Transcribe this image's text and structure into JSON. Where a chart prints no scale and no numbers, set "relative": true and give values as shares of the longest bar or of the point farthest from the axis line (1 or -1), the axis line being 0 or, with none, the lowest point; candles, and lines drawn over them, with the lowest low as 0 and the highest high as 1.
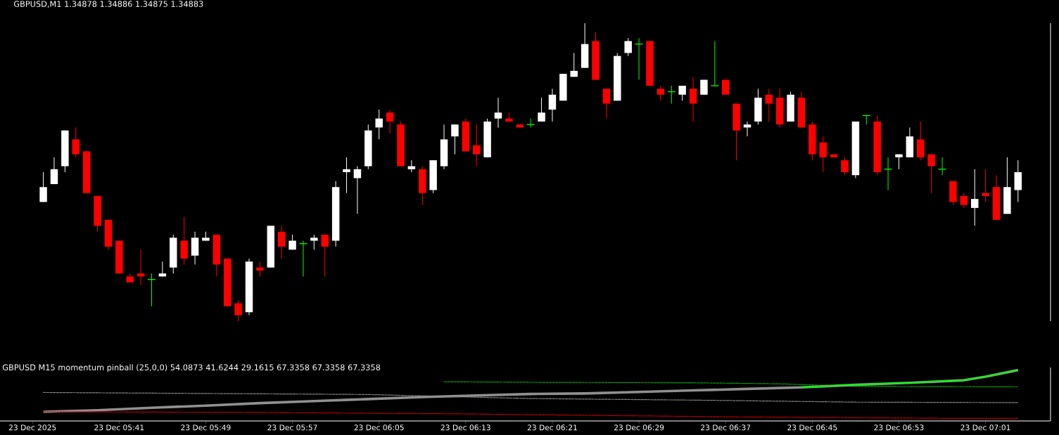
{
  "chart_data": [
    {
      "type": "candlestick",
      "title": "GBPUSD,M1  1.34878 1.34886 1.34875 1.34883",
      "relative": true,
      "tick_labels": false,
      "xlim": [
        "2025-12-23T05:30",
        "2025-12-23T07:07"
      ],
      "x": [
        "2025-12-23T05:34",
        "2025-12-23T05:35",
        "2025-12-23T05:36",
        "2025-12-23T05:37",
        "2025-12-23T05:38",
        "2025-12-23T05:39",
        "2025-12-23T05:40",
        "2025-12-23T05:41",
        "2025-12-23T05:42",
        "2025-12-23T05:43",
        "2025-12-23T05:44",
        "2025-12-23T05:45",
        "2025-12-23T05:46",
        "2025-12-23T05:47",
        "2025-12-23T05:48",
        "2025-12-23T05:49",
        "2025-12-23T05:50",
        "2025-12-23T05:51",
        "2025-12-23T05:52",
        "2025-12-23T05:53",
        "2025-12-23T05:54",
        "2025-12-23T05:55",
        "2025-12-23T05:56",
        "2025-12-23T05:57",
        "2025-12-23T05:58",
        "2025-12-23T05:59",
        "2025-12-23T06:00",
        "2025-12-23T06:01",
        "2025-12-23T06:02",
        "2025-12-23T06:03",
        "2025-12-23T06:04",
        "2025-12-23T06:05",
        "2025-12-23T06:06",
        "2025-12-23T06:07",
        "2025-12-23T06:08",
        "2025-12-23T06:09",
        "2025-12-23T06:10",
        "2025-12-23T06:11",
        "2025-12-23T06:12",
        "2025-12-23T06:13",
        "2025-12-23T06:14",
        "2025-12-23T06:15",
        "2025-12-23T06:16",
        "2025-12-23T06:17",
        "2025-12-23T06:18",
        "2025-12-23T06:19",
        "2025-12-23T06:20",
        "2025-12-23T06:21",
        "2025-12-23T06:22",
        "2025-12-23T06:23",
        "2025-12-23T06:24",
        "2025-12-23T06:25",
        "2025-12-23T06:26",
        "2025-12-23T06:27",
        "2025-12-23T06:28",
        "2025-12-23T06:29",
        "2025-12-23T06:30",
        "2025-12-23T06:31",
        "2025-12-23T06:32",
        "2025-12-23T06:33",
        "2025-12-23T06:34",
        "2025-12-23T06:35",
        "2025-12-23T06:36",
        "2025-12-23T06:37",
        "2025-12-23T06:38",
        "2025-12-23T06:39",
        "2025-12-23T06:40",
        "2025-12-23T06:41",
        "2025-12-23T06:42",
        "2025-12-23T06:43",
        "2025-12-23T06:44",
        "2025-12-23T06:45",
        "2025-12-23T06:46",
        "2025-12-23T06:47",
        "2025-12-23T06:48",
        "2025-12-23T06:49",
        "2025-12-23T06:50",
        "2025-12-23T06:51",
        "2025-12-23T06:52",
        "2025-12-23T06:53",
        "2025-12-23T06:54",
        "2025-12-23T06:55",
        "2025-12-23T06:56",
        "2025-12-23T06:57",
        "2025-12-23T06:58",
        "2025-12-23T06:59",
        "2025-12-23T07:00",
        "2025-12-23T07:01",
        "2025-12-23T07:02",
        "2025-12-23T07:03",
        "2025-12-23T07:04"
      ],
      "ohlc": [
        [
          0.4,
          0.5,
          0.4,
          0.45
        ],
        [
          0.46,
          0.55,
          0.46,
          0.51
        ],
        [
          0.52,
          0.64,
          0.5,
          0.64
        ],
        [
          0.61,
          0.65,
          0.55,
          0.56
        ],
        [
          0.57,
          0.57,
          0.43,
          0.43
        ],
        [
          0.42,
          0.42,
          0.3,
          0.32
        ],
        [
          0.34,
          0.34,
          0.24,
          0.25
        ],
        [
          0.27,
          0.27,
          0.16,
          0.16
        ],
        [
          0.15,
          0.16,
          0.13,
          0.13
        ],
        [
          0.16,
          0.24,
          0.12,
          0.15
        ],
        [
          0.14,
          0.16,
          0.05,
          0.14
        ],
        [
          0.15,
          0.2,
          0.15,
          0.16
        ],
        [
          0.18,
          0.29,
          0.16,
          0.28
        ],
        [
          0.27,
          0.35,
          0.19,
          0.21
        ],
        [
          0.22,
          0.3,
          0.19,
          0.28
        ],
        [
          0.27,
          0.3,
          0.27,
          0.28
        ],
        [
          0.29,
          0.29,
          0.15,
          0.19
        ],
        [
          0.21,
          0.21,
          0.05,
          0.05
        ],
        [
          0.06,
          0.07,
          0,
          0.02
        ],
        [
          0.03,
          0.21,
          0.02,
          0.2
        ],
        [
          0.18,
          0.2,
          0.15,
          0.17
        ],
        [
          0.18,
          0.32,
          0.18,
          0.32
        ],
        [
          0.3,
          0.32,
          0.21,
          0.25
        ],
        [
          0.24,
          0.29,
          0.24,
          0.27
        ],
        [
          0.26,
          0.27,
          0.15,
          0.26
        ],
        [
          0.27,
          0.29,
          0.24,
          0.28
        ],
        [
          0.29,
          0.29,
          0.15,
          0.25
        ],
        [
          0.27,
          0.47,
          0.25,
          0.45
        ],
        [
          0.5,
          0.55,
          0.43,
          0.51
        ],
        [
          0.48,
          0.52,
          0.36,
          0.51
        ],
        [
          0.52,
          0.66,
          0.51,
          0.64
        ],
        [
          0.65,
          0.71,
          0.61,
          0.68
        ],
        [
          0.7,
          0.71,
          0.63,
          0.67
        ],
        [
          0.66,
          0.67,
          0.52,
          0.52
        ],
        [
          0.51,
          0.54,
          0.5,
          0.52
        ],
        [
          0.51,
          0.52,
          0.39,
          0.43
        ],
        [
          0.44,
          0.54,
          0.43,
          0.54
        ],
        [
          0.52,
          0.66,
          0.51,
          0.61
        ],
        [
          0.62,
          0.66,
          0.56,
          0.66
        ],
        [
          0.67,
          0.68,
          0.57,
          0.57
        ],
        [
          0.59,
          0.66,
          0.52,
          0.56
        ],
        [
          0.55,
          0.68,
          0.55,
          0.67
        ],
        [
          0.68,
          0.75,
          0.65,
          0.7
        ],
        [
          0.68,
          0.7,
          0.67,
          0.67
        ],
        [
          0.66,
          0.66,
          0.65,
          0.65
        ],
        [
          0.66,
          0.68,
          0.65,
          0.66
        ],
        [
          0.67,
          0.75,
          0.67,
          0.7
        ],
        [
          0.71,
          0.78,
          0.67,
          0.76
        ],
        [
          0.74,
          0.83,
          0.74,
          0.83
        ],
        [
          0.82,
          0.9,
          0.82,
          0.84
        ],
        [
          0.85,
          1.0,
          0.85,
          0.93
        ],
        [
          0.94,
          0.97,
          0.81,
          0.81
        ],
        [
          0.78,
          0.78,
          0.68,
          0.73
        ],
        [
          0.74,
          0.9,
          0.74,
          0.89
        ],
        [
          0.9,
          0.95,
          0.89,
          0.94
        ],
        [
          0.93,
          0.95,
          0.81,
          0.93
        ],
        [
          0.94,
          0.94,
          0.79,
          0.79
        ],
        [
          0.78,
          0.79,
          0.74,
          0.76
        ],
        [
          0.77,
          0.79,
          0.73,
          0.77
        ],
        [
          0.76,
          0.79,
          0.74,
          0.79
        ],
        [
          0.78,
          0.82,
          0.67,
          0.73
        ],
        [
          0.76,
          0.81,
          0.76,
          0.81
        ],
        [
          0.79,
          0.94,
          0.79,
          0.79
        ],
        [
          0.81,
          0.81,
          0.76,
          0.76
        ],
        [
          0.73,
          0.73,
          0.54,
          0.64
        ],
        [
          0.65,
          0.67,
          0.62,
          0.66
        ],
        [
          0.67,
          0.78,
          0.66,
          0.75
        ],
        [
          0.76,
          0.78,
          0.67,
          0.73
        ],
        [
          0.75,
          0.78,
          0.65,
          0.66
        ],
        [
          0.67,
          0.77,
          0.67,
          0.76
        ],
        [
          0.75,
          0.77,
          0.65,
          0.65
        ],
        [
          0.66,
          0.67,
          0.54,
          0.56
        ],
        [
          0.6,
          0.62,
          0.5,
          0.55
        ],
        [
          0.56,
          0.56,
          0.55,
          0.55
        ],
        [
          0.54,
          0.55,
          0.49,
          0.5
        ],
        [
          0.49,
          0.67,
          0.48,
          0.67
        ],
        [
          0.69,
          0.69,
          0.66,
          0.69
        ],
        [
          0.67,
          0.69,
          0.49,
          0.5
        ],
        [
          0.51,
          0.55,
          0.44,
          0.51
        ],
        [
          0.55,
          0.56,
          0.51,
          0.56
        ],
        [
          0.55,
          0.65,
          0.55,
          0.62
        ],
        [
          0.61,
          0.67,
          0.54,
          0.55
        ],
        [
          0.56,
          0.56,
          0.43,
          0.52
        ],
        [
          0.51,
          0.55,
          0.49,
          0.51
        ],
        [
          0.47,
          0.47,
          0.39,
          0.4
        ],
        [
          0.42,
          0.43,
          0.38,
          0.39
        ],
        [
          0.38,
          0.51,
          0.32,
          0.41
        ],
        [
          0.43,
          0.51,
          0.4,
          0.42
        ],
        [
          0.45,
          0.49,
          0.34,
          0.34
        ],
        [
          0.36,
          0.55,
          0.36,
          0.45
        ],
        [
          0.44,
          0.54,
          0.4,
          0.5
        ]
      ],
      "colors": [
        "#ffffff",
        "#ffffff",
        "#ffffff",
        "#ff0000",
        "#ff0000",
        "#ff0000",
        "#ff0000",
        "#ff0000",
        "#ff0000",
        "#ff0000",
        "#00ff00",
        "#ffffff",
        "#ffffff",
        "#ff0000",
        "#ffffff",
        "#ffffff",
        "#ff0000",
        "#ff0000",
        "#ff0000",
        "#ffffff",
        "#ff0000",
        "#ffffff",
        "#ff0000",
        "#ffffff",
        "#00ff00",
        "#ffffff",
        "#ff0000",
        "#ffffff",
        "#ffffff",
        "#ffffff",
        "#ffffff",
        "#ffffff",
        "#ff0000",
        "#ff0000",
        "#ffffff",
        "#ff0000",
        "#ffffff",
        "#ffffff",
        "#ffffff",
        "#ff0000",
        "#ff0000",
        "#ffffff",
        "#ffffff",
        "#ff0000",
        "#ff0000",
        "#00ff00",
        "#ffffff",
        "#ffffff",
        "#ffffff",
        "#ffffff",
        "#ffffff",
        "#ff0000",
        "#ff0000",
        "#ffffff",
        "#ffffff",
        "#00ff00",
        "#ff0000",
        "#ff0000",
        "#00ff00",
        "#ffffff",
        "#ff0000",
        "#ffffff",
        "#00ff00",
        "#ff0000",
        "#ff0000",
        "#ffffff",
        "#ffffff",
        "#ff0000",
        "#ff0000",
        "#ffffff",
        "#ff0000",
        "#ff0000",
        "#ff0000",
        "#ff0000",
        "#ff0000",
        "#ffffff",
        "#00ff00",
        "#ff0000",
        "#00ff00",
        "#ffffff",
        "#ffffff",
        "#ff0000",
        "#ff0000",
        "#00ff00",
        "#ff0000",
        "#ff0000",
        "#ffffff",
        "#ff0000",
        "#ff0000",
        "#ffffff",
        "#ffffff"
      ]
    },
    {
      "type": "line",
      "title": "GBPUSD M15 momentum pinball (25,0,0) 54.0873 41.6244 29.1615 67.3358 67.3358 67.3358",
      "relative": true,
      "tick_labels": "x",
      "xlim": [
        "2025-12-23T05:30",
        "2025-12-23T07:07"
      ],
      "xticks": [
        {
          "value": "2025-12-23T05:33",
          "label": "23 Dec 2025"
        },
        {
          "value": "2025-12-23T05:41",
          "label": "23 Dec 05:41"
        },
        {
          "value": "2025-12-23T05:49",
          "label": "23 Dec 05:49"
        },
        {
          "value": "2025-12-23T05:57",
          "label": "23 Dec 05:57"
        },
        {
          "value": "2025-12-23T06:05",
          "label": "23 Dec 06:05"
        },
        {
          "value": "2025-12-23T06:13",
          "label": "23 Dec 06:13"
        },
        {
          "value": "2025-12-23T06:21",
          "label": "23 Dec 06:21"
        },
        {
          "value": "2025-12-23T06:29",
          "label": "23 Dec 06:29"
        },
        {
          "value": "2025-12-23T06:37",
          "label": "23 Dec 06:37"
        },
        {
          "value": "2025-12-23T06:45",
          "label": "23 Dec 06:45"
        },
        {
          "value": "2025-12-23T06:53",
          "label": "23 Dec 06:53"
        },
        {
          "value": "2025-12-23T07:01",
          "label": "23 Dec 07:01"
        }
      ],
      "series": [
        {
          "color": "#00a000",
          "line_style": "dotted",
          "x": [
            "2025-12-23T06:11",
            "2025-12-23T06:19",
            "2025-12-23T06:34",
            "2025-12-23T06:42",
            "2025-12-23T06:49",
            "2025-12-23T07:04"
          ],
          "values": [
            0.77,
            0.76,
            0.75,
            0.73,
            0.68,
            0.67
          ]
        },
        {
          "color": "#808080",
          "line_style": "dotted",
          "x": [
            "2025-12-23T05:34",
            "2025-12-23T05:49",
            "2025-12-23T06:04",
            "2025-12-23T06:19",
            "2025-12-23T06:34",
            "2025-12-23T06:49",
            "2025-12-23T07:04"
          ],
          "values": [
            0.56,
            0.54,
            0.52,
            0.44,
            0.41,
            0.37,
            0.36
          ]
        },
        {
          "color": "#909090",
          "line_style": "solid",
          "x": [
            "2025-12-23T05:34",
            "2025-12-23T05:39",
            "2025-12-23T05:44",
            "2025-12-23T05:49",
            "2025-12-23T05:54",
            "2025-12-23T05:59",
            "2025-12-23T06:04",
            "2025-12-23T06:09",
            "2025-12-23T06:14",
            "2025-12-23T06:19",
            "2025-12-23T06:24",
            "2025-12-23T06:29",
            "2025-12-23T06:34",
            "2025-12-23T06:39",
            "2025-12-23T06:44",
            "2025-12-23T06:49",
            "2025-12-23T06:54",
            "2025-12-23T06:59",
            "2025-12-23T07:01",
            "2025-12-23T07:04"
          ],
          "values": [
            0.18,
            0.21,
            0.26,
            0.3,
            0.35,
            0.39,
            0.43,
            0.47,
            0.5,
            0.53,
            0.54,
            0.57,
            0.6,
            0.63,
            0.66,
            0.71,
            0.75,
            0.8,
            0.87,
            1.0
          ]
        },
        {
          "color": "#00ff00",
          "line_style": "solid",
          "x": [
            "2025-12-23T06:44",
            "2025-12-23T06:49",
            "2025-12-23T06:54",
            "2025-12-23T06:59",
            "2025-12-23T07:01",
            "2025-12-23T07:04"
          ],
          "values": [
            0.66,
            0.71,
            0.75,
            0.8,
            0.87,
            1.0
          ]
        },
        {
          "color": "#c00000",
          "line_style": "dotted",
          "x": [
            "2025-12-23T05:34",
            "2025-12-23T05:52",
            "2025-12-23T06:12",
            "2025-12-23T06:20",
            "2025-12-23T06:38",
            "2025-12-23T06:58",
            "2025-12-23T07:04"
          ],
          "values": [
            0.18,
            0.17,
            0.14,
            0.12,
            0.08,
            0.05,
            0.05
          ]
        }
      ]
    }
  ]
}
